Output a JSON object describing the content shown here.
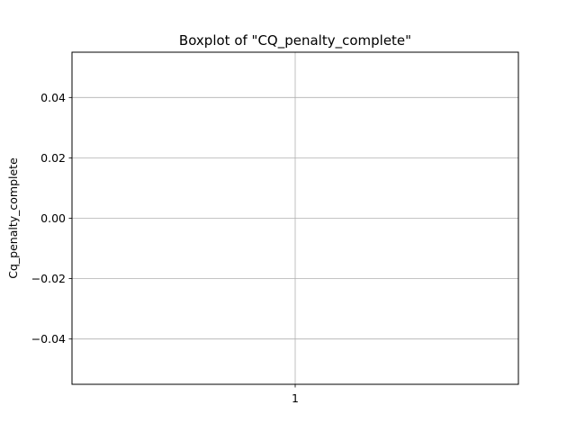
{
  "chart_data": {
    "type": "boxplot",
    "title": "Boxplot of \"CQ_penalty_complete\"",
    "xlabel": "",
    "ylabel": "Cq_penalty_complete",
    "categories": [
      "1"
    ],
    "series": [
      {
        "values": []
      }
    ],
    "ylim": [
      -0.055,
      0.055
    ],
    "yticks": [
      -0.04,
      -0.02,
      0.0,
      0.02,
      0.04
    ],
    "ytick_labels": [
      "−0.04",
      "−0.02",
      "0.00",
      "0.02",
      "0.04"
    ],
    "grid": true,
    "colors": {
      "grid": "#b0b0b0",
      "axes": "#000000"
    }
  }
}
